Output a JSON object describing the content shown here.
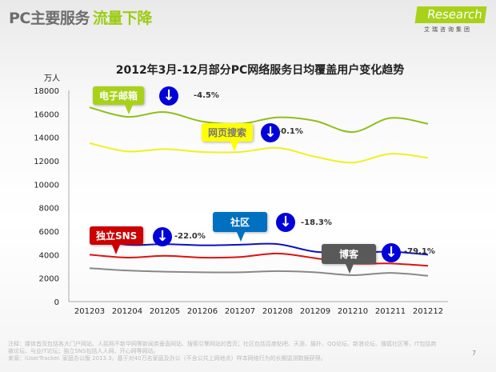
{
  "header": {
    "title_main": "PC主要服务",
    "title_highlight": "流量下降",
    "logo_text": "Research",
    "logo_i": "i",
    "logo_sub": "艾瑞咨询集团"
  },
  "chart_data": {
    "type": "line",
    "title": "2012年3月-12月部分PC网络服务日均覆盖用户变化趋势",
    "ylabel": "万人",
    "xlabel": "",
    "ylim": [
      0,
      18000
    ],
    "yticks": [
      0,
      2000,
      4000,
      6000,
      8000,
      10000,
      12000,
      14000,
      16000,
      18000
    ],
    "categories": [
      "201203",
      "201204",
      "201205",
      "201206",
      "201207",
      "201208",
      "201209",
      "201210",
      "201211",
      "201212"
    ],
    "grid": false,
    "series": [
      {
        "name": "电子邮箱",
        "color": "#8fbf1a",
        "change": "-4.5%",
        "values": [
          16550,
          15750,
          16150,
          15350,
          15150,
          15700,
          15400,
          14450,
          15650,
          15150
        ]
      },
      {
        "name": "网页搜索",
        "color": "#f0f020",
        "change": "-0.1%",
        "values": [
          13500,
          12800,
          13000,
          12750,
          12750,
          13100,
          12350,
          11850,
          12600,
          12250
        ]
      },
      {
        "name": "社区",
        "color": "#1010c0",
        "change": "-18.3%",
        "values": [
          5400,
          4850,
          4900,
          4800,
          4850,
          4900,
          4250,
          4150,
          4250,
          4000
        ]
      },
      {
        "name": "独立SNS",
        "color": "#e01010",
        "change": "-22.0%",
        "values": [
          4000,
          3750,
          3900,
          3750,
          3800,
          4100,
          3700,
          3250,
          3250,
          3050
        ]
      },
      {
        "name": "博客",
        "color": "#888888",
        "change": "-79.1%",
        "values": [
          2850,
          2650,
          2550,
          2500,
          2500,
          2600,
          2500,
          2250,
          2450,
          2200
        ]
      }
    ]
  },
  "footer": {
    "note1": "注释：媒体首页包括各大门户网站、人民网不新华网等新闻类垂直网站、搜索引擎网站的首页；社区包括百度贴吧、天涯、猫扑、QQ论坛、新浪论坛、搜狐社区等，IT包括商被论坛、与业IT论坛；独立SNS包括人人网、开心网等网站。",
    "note2": "来源：iUserTracker. 家庭办公版 2013.3，基于对40万名家庭及办公（不含公共上网地点）样本网络行为的长期监测数据获得。",
    "page": "7"
  }
}
